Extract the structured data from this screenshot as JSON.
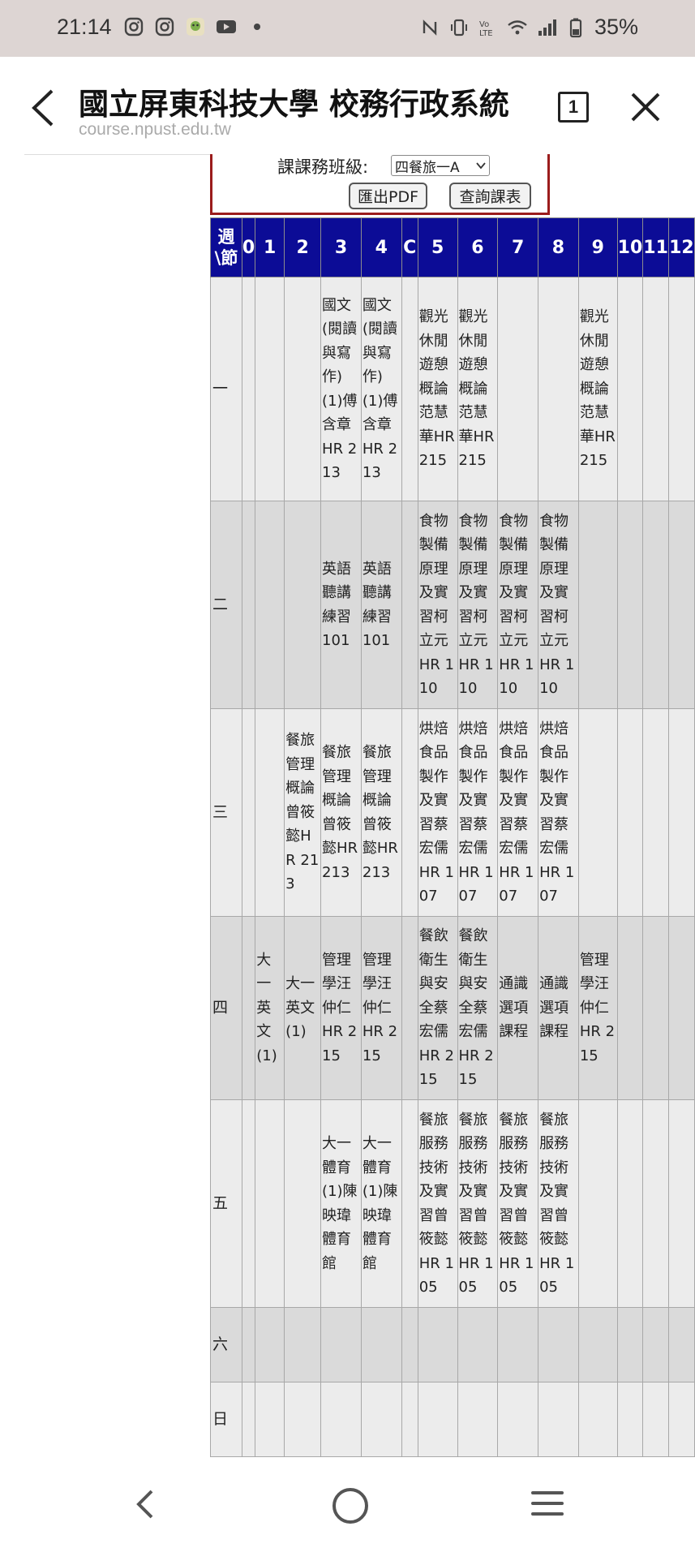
{
  "status_bar": {
    "time": "21:14",
    "battery": "35%",
    "icons_left": [
      "instagram-icon",
      "instagram-icon",
      "app-icon",
      "youtube-icon",
      "dot-icon"
    ],
    "icons_right": [
      "nfc-icon",
      "vibrate-icon",
      "volte-icon",
      "wifi-icon",
      "signal-icon",
      "battery-icon"
    ]
  },
  "browser": {
    "title": "國立屏東科技大學 校務行政系統...",
    "url": "course.npust.edu.tw",
    "tab_count": "1"
  },
  "form": {
    "label": "課課務班級:",
    "selected_class": "四餐旅一A",
    "export_pdf": "匯出PDF",
    "query": "查詢課表"
  },
  "timetable": {
    "corner": [
      "週",
      "\\節"
    ],
    "periods": [
      "0",
      "1",
      "2",
      "3",
      "4",
      "C",
      "5",
      "6",
      "7",
      "8",
      "9",
      "10",
      "11",
      "12"
    ],
    "rows": [
      {
        "day": "一",
        "cells": [
          "",
          "",
          "",
          "國文(閱讀與寫作)(1)傅含章HR 213",
          "國文(閱讀與寫作)(1)傅含章HR 213",
          "",
          "觀光休閒遊憩概論范慧華HR 215",
          "觀光休閒遊憩概論范慧華HR 215",
          "",
          "",
          "觀光休閒遊憩概論范慧華HR 215",
          "",
          "",
          ""
        ]
      },
      {
        "day": "二",
        "cells": [
          "",
          "",
          "",
          "英語聽講練習101",
          "英語聽講練習101",
          "",
          "食物製備原理及實習柯立元HR 110",
          "食物製備原理及實習柯立元HR 110",
          "食物製備原理及實習柯立元HR 110",
          "食物製備原理及實習柯立元HR 110",
          "",
          "",
          "",
          ""
        ]
      },
      {
        "day": "三",
        "cells": [
          "",
          "",
          "餐旅管理概論曾筱懿HR 213",
          "餐旅管理概論曾筱懿HR 213",
          "餐旅管理概論曾筱懿HR 213",
          "",
          "烘焙食品製作及實習蔡宏儒HR 107",
          "烘焙食品製作及實習蔡宏儒HR 107",
          "烘焙食品製作及實習蔡宏儒HR 107",
          "烘焙食品製作及實習蔡宏儒HR 107",
          "",
          "",
          "",
          ""
        ]
      },
      {
        "day": "四",
        "cells": [
          "",
          "大一英文(1)",
          "大一英文(1)",
          "管理學汪仲仁HR 215",
          "管理學汪仲仁HR 215",
          "",
          "餐飲衛生與安全蔡宏儒HR 215",
          "餐飲衛生與安全蔡宏儒HR 215",
          "通識選項課程",
          "通識選項課程",
          "管理學汪仲仁HR 215",
          "",
          "",
          ""
        ]
      },
      {
        "day": "五",
        "cells": [
          "",
          "",
          "",
          "大一體育(1)陳映瑋體育館",
          "大一體育(1)陳映瑋體育館",
          "",
          "餐旅服務技術及實習曾筱懿HR 105",
          "餐旅服務技術及實習曾筱懿HR 105",
          "餐旅服務技術及實習曾筱懿HR 105",
          "餐旅服務技術及實習曾筱懿HR 105",
          "",
          "",
          "",
          ""
        ]
      },
      {
        "day": "六",
        "cells": [
          "",
          "",
          "",
          "",
          "",
          "",
          "",
          "",
          "",
          "",
          "",
          "",
          "",
          ""
        ]
      },
      {
        "day": "日",
        "cells": [
          "",
          "",
          "",
          "",
          "",
          "",
          "",
          "",
          "",
          "",
          "",
          "",
          "",
          ""
        ]
      }
    ]
  },
  "nav": {
    "back": "back-nav-icon",
    "home": "home-nav-icon",
    "recents": "recents-nav-icon"
  }
}
